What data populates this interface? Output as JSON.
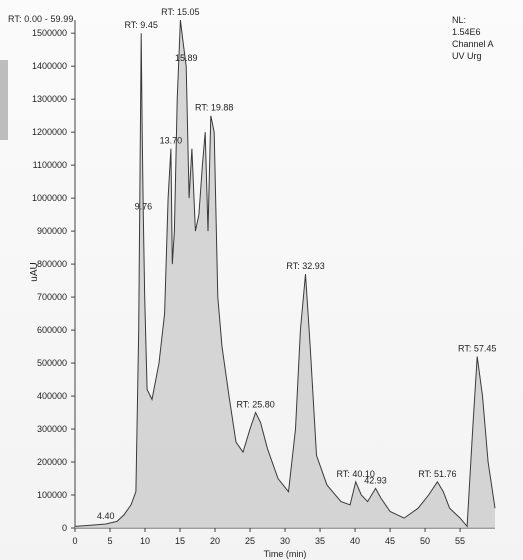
{
  "header": {
    "rt_range": "RT: 0.00 - 59.99",
    "nl_label": "NL:",
    "nl_value": "1.54E6",
    "channel": "Channel A",
    "detector": "UV Urg"
  },
  "chart_data": {
    "type": "line",
    "title": "",
    "xlabel": "Time (min)",
    "ylabel": "uAU",
    "xlim": [
      0,
      59.99
    ],
    "ylim": [
      0,
      1540000
    ],
    "x_ticks": [
      0,
      5,
      10,
      15,
      20,
      25,
      30,
      35,
      40,
      45,
      50,
      55
    ],
    "y_ticks": [
      0,
      100000,
      200000,
      300000,
      400000,
      500000,
      600000,
      700000,
      800000,
      900000,
      1000000,
      1100000,
      1200000,
      1300000,
      1400000,
      1500000
    ],
    "grid": false,
    "series": [
      {
        "x": [
          0,
          2,
          4.4,
          6.0,
          7.0,
          8.0,
          8.7,
          9.1,
          9.45,
          9.6,
          9.76,
          9.95,
          10.3,
          11.0,
          12.0,
          12.8,
          13.3,
          13.7,
          13.9,
          14.2,
          14.6,
          15.05,
          15.4,
          15.89,
          16.3,
          16.7,
          17.2,
          17.7,
          18.2,
          18.6,
          19.0,
          19.4,
          19.88,
          20.4,
          21.0,
          22.0,
          23.0,
          24.0,
          25.0,
          25.8,
          26.5,
          27.5,
          29.0,
          30.5,
          31.5,
          32.2,
          32.93,
          33.6,
          34.5,
          36.0,
          38.0,
          39.3,
          40.1,
          40.9,
          41.8,
          42.93,
          43.7,
          45.0,
          47.0,
          49.0,
          50.5,
          51.76,
          52.6,
          53.5,
          55.0,
          56.0,
          56.8,
          57.45,
          58.2,
          59.0,
          59.99
        ],
        "y": [
          5000,
          8000,
          12000,
          20000,
          40000,
          70000,
          110000,
          600000,
          1500000,
          1200000,
          950000,
          700000,
          420000,
          390000,
          500000,
          650000,
          1000000,
          1150000,
          800000,
          900000,
          1300000,
          1540000,
          1480000,
          1400000,
          1000000,
          1150000,
          900000,
          950000,
          1100000,
          1200000,
          900000,
          1250000,
          1200000,
          700000,
          550000,
          400000,
          260000,
          230000,
          300000,
          350000,
          320000,
          240000,
          150000,
          110000,
          300000,
          600000,
          770000,
          550000,
          220000,
          130000,
          80000,
          70000,
          140000,
          100000,
          80000,
          120000,
          90000,
          50000,
          30000,
          60000,
          100000,
          140000,
          110000,
          60000,
          30000,
          5000,
          300000,
          520000,
          400000,
          200000,
          60000
        ]
      }
    ],
    "peak_labels": [
      {
        "text": "4.40",
        "x": 4.4,
        "y": 12000
      },
      {
        "text": "RT: 9.45",
        "x": 9.45,
        "y": 1500000
      },
      {
        "text": "9.76",
        "x": 9.76,
        "y": 950000
      },
      {
        "text": "13.70",
        "x": 13.7,
        "y": 1150000
      },
      {
        "text": "RT: 15.05",
        "x": 15.05,
        "y": 1540000
      },
      {
        "text": "15.89",
        "x": 15.89,
        "y": 1400000
      },
      {
        "text": "RT: 19.88",
        "x": 19.88,
        "y": 1250000
      },
      {
        "text": "RT: 25.80",
        "x": 25.8,
        "y": 350000
      },
      {
        "text": "RT: 32.93",
        "x": 32.93,
        "y": 770000
      },
      {
        "text": "RT: 40.10",
        "x": 40.1,
        "y": 140000
      },
      {
        "text": "42.93",
        "x": 42.93,
        "y": 120000
      },
      {
        "text": "RT: 51.76",
        "x": 51.76,
        "y": 140000
      },
      {
        "text": "RT: 57.45",
        "x": 57.45,
        "y": 520000
      }
    ]
  }
}
